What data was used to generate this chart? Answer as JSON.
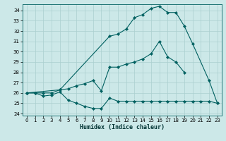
{
  "xlabel": "Humidex (Indice chaleur)",
  "xlim": [
    -0.5,
    23.5
  ],
  "ylim": [
    23.8,
    34.6
  ],
  "yticks": [
    24,
    25,
    26,
    27,
    28,
    29,
    30,
    31,
    32,
    33,
    34
  ],
  "xticks": [
    0,
    1,
    2,
    3,
    4,
    5,
    6,
    7,
    8,
    9,
    10,
    11,
    12,
    13,
    14,
    15,
    16,
    17,
    18,
    19,
    20,
    21,
    22,
    23
  ],
  "bg_color": "#cce8e8",
  "line_color": "#006060",
  "grid_color": "#aacfcf",
  "series": [
    {
      "x": [
        0,
        1,
        2,
        3,
        4,
        5,
        6,
        7,
        8,
        9,
        10,
        11,
        12,
        13,
        14,
        15,
        16,
        17,
        18,
        19
      ],
      "y": [
        26,
        26,
        26,
        26,
        26.3,
        26.4,
        26.7,
        26.9,
        27.2,
        26.2,
        28.5,
        28.5,
        28.8,
        29.0,
        29.3,
        29.8,
        31.0,
        29.5,
        29.0,
        28.0
      ]
    },
    {
      "x": [
        0,
        1,
        2,
        3,
        4,
        5,
        6,
        7,
        8,
        9,
        10,
        11,
        12,
        13,
        14,
        15,
        16,
        17,
        18,
        19,
        20,
        21,
        22,
        23
      ],
      "y": [
        26,
        26,
        25.7,
        25.8,
        26.1,
        25.3,
        25.0,
        24.7,
        24.5,
        24.5,
        25.5,
        25.2,
        25.2,
        25.2,
        25.2,
        25.2,
        25.2,
        25.2,
        25.2,
        25.2,
        25.2,
        25.2,
        25.2,
        25.0
      ]
    },
    {
      "x": [
        0,
        4,
        10,
        11,
        12,
        13,
        14,
        15,
        16,
        17,
        18,
        19,
        20,
        22,
        23
      ],
      "y": [
        26,
        26.3,
        31.5,
        31.7,
        32.2,
        33.3,
        33.6,
        34.2,
        34.4,
        33.8,
        33.8,
        32.5,
        30.8,
        27.2,
        25.0
      ]
    }
  ]
}
